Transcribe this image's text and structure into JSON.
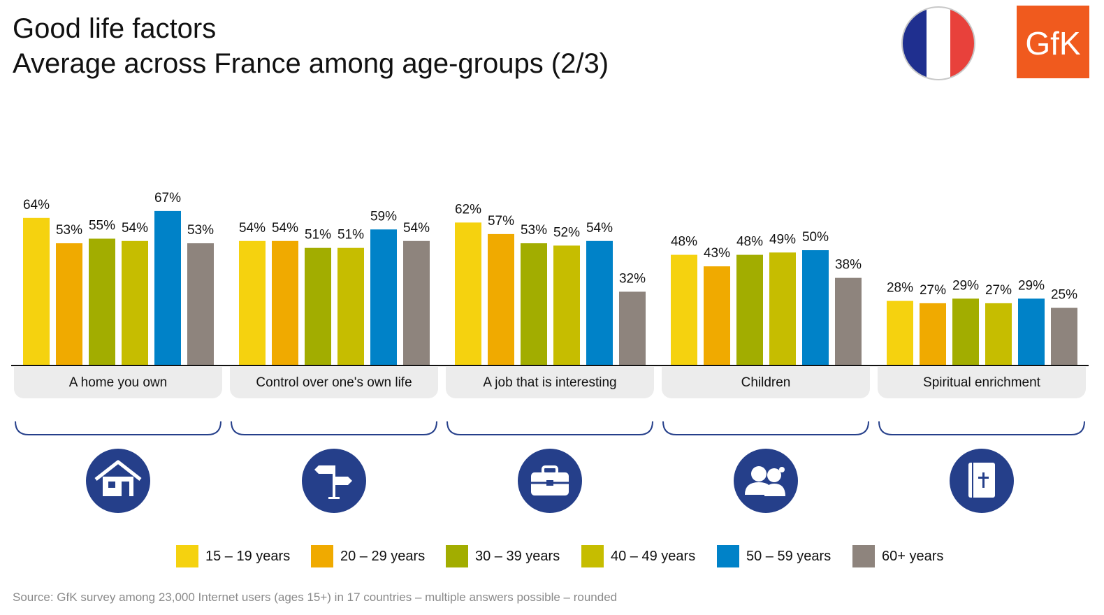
{
  "header": {
    "title_line1": "Good life factors",
    "title_line2": "Average across France among age-groups (2/3)"
  },
  "flag": {
    "icon": "france-flag-icon",
    "colors": [
      "#1f2f8f",
      "#ffffff",
      "#e8413b"
    ]
  },
  "logo": {
    "text": "GfK",
    "color": "#f05a1e"
  },
  "chart_data": {
    "type": "bar",
    "categories": [
      "A home you own",
      "Control over one's own life",
      "A job that is interesting",
      "Children",
      "Spiritual enrichment"
    ],
    "series": [
      {
        "name": "15 – 19 years",
        "color": "#f5d20f",
        "values": [
          64,
          54,
          62,
          48,
          28
        ]
      },
      {
        "name": "20 – 29 years",
        "color": "#f0aa00",
        "values": [
          53,
          54,
          57,
          43,
          27
        ]
      },
      {
        "name": "30 – 39 years",
        "color": "#a2ad00",
        "values": [
          55,
          51,
          53,
          48,
          29
        ]
      },
      {
        "name": "40 – 49 years",
        "color": "#c6bd00",
        "values": [
          54,
          51,
          52,
          49,
          27
        ]
      },
      {
        "name": "50 – 59 years",
        "color": "#0082c8",
        "values": [
          67,
          59,
          54,
          50,
          29
        ]
      },
      {
        "name": "60+ years",
        "color": "#8e847d",
        "values": [
          53,
          54,
          32,
          38,
          25
        ]
      }
    ],
    "value_suffix": "%",
    "ylim": [
      0,
      70
    ],
    "legend_position": "bottom",
    "grid": false,
    "category_icons": [
      "house-icon",
      "signpost-icon",
      "briefcase-icon",
      "people-icon",
      "bible-icon"
    ],
    "icon_color": "#253f8a"
  },
  "source": "Source: GfK survey among 23,000 Internet users (ages 15+) in 17 countries – multiple answers possible – rounded"
}
